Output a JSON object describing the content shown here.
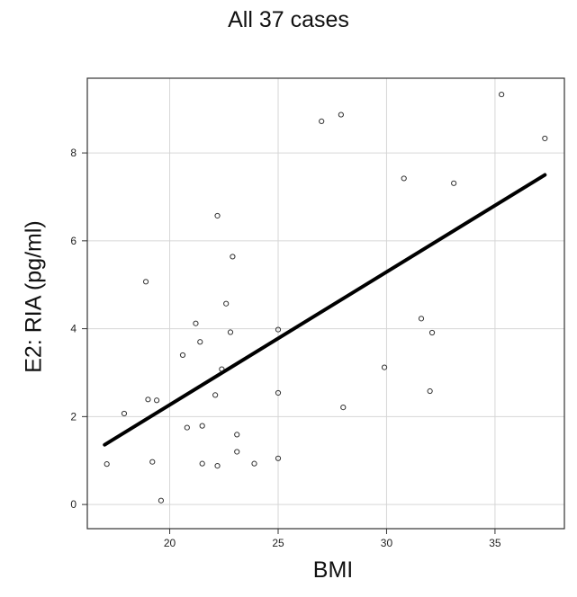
{
  "chart_data": {
    "type": "scatter",
    "title": "All 37 cases",
    "xlabel": "BMI",
    "ylabel": "E2: RIA (pg/ml)",
    "xlim": [
      16.2,
      38.2
    ],
    "ylim": [
      -0.55,
      9.7
    ],
    "xticks": [
      20,
      25,
      30,
      35
    ],
    "yticks": [
      0,
      2,
      4,
      6,
      8
    ],
    "grid": true,
    "points": [
      {
        "x": 17.1,
        "y": 0.92
      },
      {
        "x": 17.9,
        "y": 2.07
      },
      {
        "x": 18.9,
        "y": 5.07
      },
      {
        "x": 19.0,
        "y": 2.39
      },
      {
        "x": 19.2,
        "y": 0.97
      },
      {
        "x": 19.4,
        "y": 2.37
      },
      {
        "x": 19.6,
        "y": 0.09
      },
      {
        "x": 20.6,
        "y": 3.4
      },
      {
        "x": 20.8,
        "y": 1.75
      },
      {
        "x": 21.2,
        "y": 4.12
      },
      {
        "x": 21.4,
        "y": 3.7
      },
      {
        "x": 21.5,
        "y": 1.79
      },
      {
        "x": 21.5,
        "y": 0.93
      },
      {
        "x": 22.1,
        "y": 2.49
      },
      {
        "x": 22.2,
        "y": 6.57
      },
      {
        "x": 22.2,
        "y": 0.88
      },
      {
        "x": 22.4,
        "y": 3.08
      },
      {
        "x": 22.6,
        "y": 4.57
      },
      {
        "x": 22.8,
        "y": 3.92
      },
      {
        "x": 22.9,
        "y": 5.64
      },
      {
        "x": 23.1,
        "y": 1.59
      },
      {
        "x": 23.1,
        "y": 1.2
      },
      {
        "x": 23.9,
        "y": 0.93
      },
      {
        "x": 25.0,
        "y": 3.98
      },
      {
        "x": 25.0,
        "y": 2.54
      },
      {
        "x": 25.0,
        "y": 1.05
      },
      {
        "x": 27.0,
        "y": 8.72
      },
      {
        "x": 27.9,
        "y": 8.87
      },
      {
        "x": 28.0,
        "y": 2.21
      },
      {
        "x": 29.9,
        "y": 3.12
      },
      {
        "x": 30.8,
        "y": 7.42
      },
      {
        "x": 31.6,
        "y": 4.23
      },
      {
        "x": 32.0,
        "y": 2.58
      },
      {
        "x": 32.1,
        "y": 3.91
      },
      {
        "x": 33.1,
        "y": 7.31
      },
      {
        "x": 35.3,
        "y": 9.33
      },
      {
        "x": 37.3,
        "y": 8.33
      }
    ],
    "fit_line": {
      "x": [
        17.0,
        37.3
      ],
      "y": [
        1.36,
        7.5
      ]
    }
  }
}
